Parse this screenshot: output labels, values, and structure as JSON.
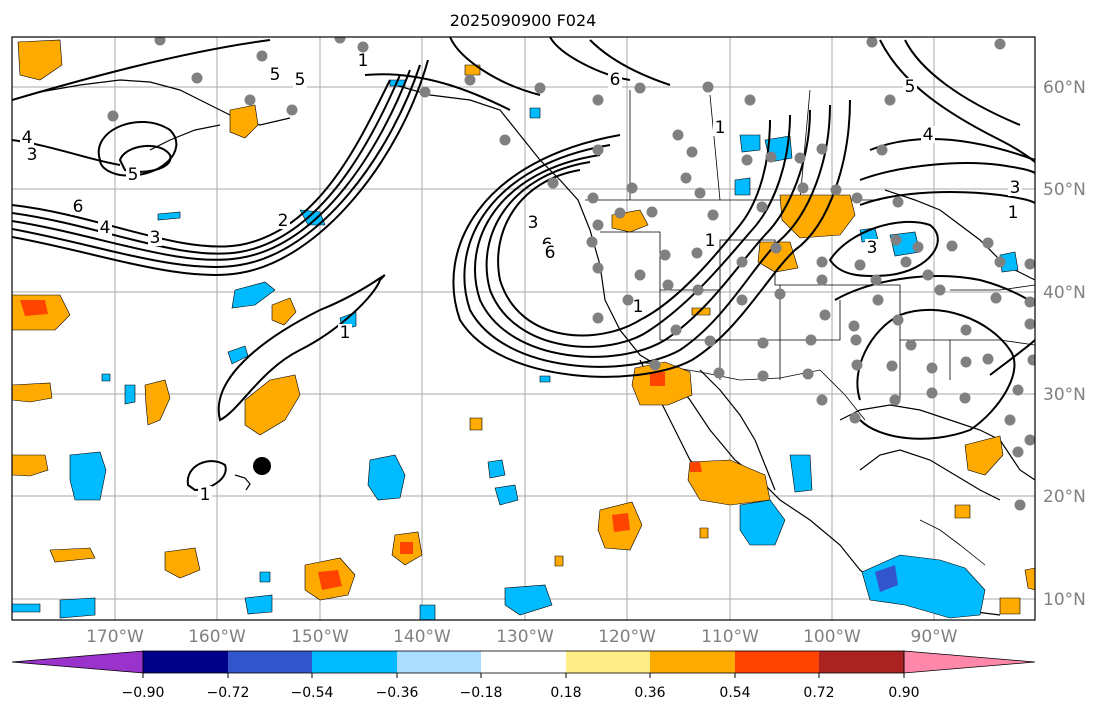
{
  "title": "2025090900 F024",
  "lon_labels": [
    "170°W",
    "160°W",
    "150°W",
    "140°W",
    "130°W",
    "120°W",
    "110°W",
    "100°W",
    "90°W"
  ],
  "lat_labels": [
    "60°N",
    "50°N",
    "40°N",
    "30°N",
    "20°N",
    "10°N"
  ],
  "contour_labels": [
    "1",
    "5",
    "5",
    "4",
    "5",
    "6",
    "4",
    "3",
    "2",
    "1",
    "1",
    "3",
    "6",
    "6",
    "1",
    "3",
    "5",
    "4",
    "3",
    "1",
    "1",
    "1",
    "3",
    "6"
  ],
  "colorbar": {
    "ticks": [
      "−0.90",
      "−0.72",
      "−0.54",
      "−0.36",
      "−0.18",
      "0.18",
      "0.36",
      "0.54",
      "0.72",
      "0.90"
    ],
    "colors": [
      "#9933cc",
      "#000088",
      "#3355cc",
      "#00bbff",
      "#aaddff",
      "#ffffff",
      "#ffee88",
      "#ffaa00",
      "#ff4400",
      "#aa2222",
      "#ff88aa"
    ]
  },
  "colors": {
    "positive": "#ffaa00",
    "positive_strong": "#ff4400",
    "negative": "#00bbff",
    "negative_strong": "#3355cc",
    "station": "#808080",
    "grid": "#aaaaaa"
  }
}
